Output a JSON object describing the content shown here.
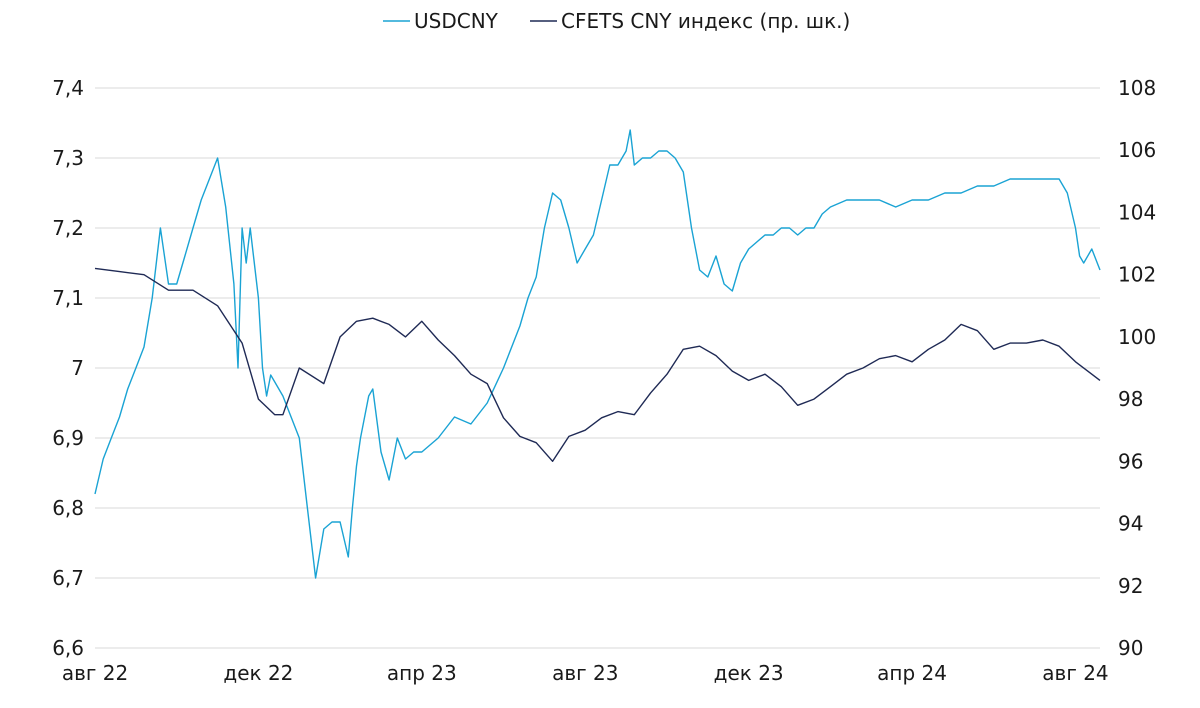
{
  "chart_data": {
    "type": "line",
    "title": "",
    "xlabel": "",
    "ylabel": "",
    "x_ticks": [
      "авг 22",
      "дек 22",
      "апр 23",
      "авг 23",
      "дек 23",
      "апр 24",
      "авг 24"
    ],
    "y_left": {
      "lim": [
        6.6,
        7.4
      ],
      "ticks": [
        "6,6",
        "6,7",
        "6,8",
        "6,9",
        "7",
        "7,1",
        "7,2",
        "7,3",
        "7,4"
      ]
    },
    "y_right": {
      "lim": [
        90,
        108
      ],
      "ticks": [
        "90",
        "92",
        "94",
        "96",
        "98",
        "100",
        "102",
        "104",
        "106",
        "108"
      ]
    },
    "grid": true,
    "legend_position": "top-center",
    "series": [
      {
        "name": "USDCNY",
        "axis": "left",
        "color": "#1aa3d4",
        "x": [
          0,
          0.1,
          0.2,
          0.3,
          0.4,
          0.5,
          0.6,
          0.7,
          0.8,
          0.9,
          1.0,
          1.1,
          1.2,
          1.3,
          1.4,
          1.5,
          1.6,
          1.7,
          1.75,
          1.8,
          1.85,
          1.9,
          2.0,
          2.05,
          2.1,
          2.15,
          2.2,
          2.3,
          2.4,
          2.5,
          2.6,
          2.7,
          2.8,
          2.9,
          3.0,
          3.1,
          3.15,
          3.2,
          3.25,
          3.3,
          3.35,
          3.4,
          3.5,
          3.6,
          3.7,
          3.8,
          3.9,
          4.0,
          4.2,
          4.4,
          4.6,
          4.8,
          5.0,
          5.2,
          5.3,
          5.4,
          5.5,
          5.6,
          5.7,
          5.8,
          5.9,
          6.0,
          6.1,
          6.2,
          6.3,
          6.4,
          6.5,
          6.55,
          6.6,
          6.7,
          6.8,
          6.9,
          7.0,
          7.1,
          7.2,
          7.3,
          7.4,
          7.5,
          7.6,
          7.7,
          7.8,
          7.9,
          8.0,
          8.1,
          8.2,
          8.3,
          8.4,
          8.5,
          8.6,
          8.7,
          8.8,
          8.9,
          9.0,
          9.2,
          9.4,
          9.6,
          9.8,
          10.0,
          10.2,
          10.4,
          10.6,
          10.8,
          11.0,
          11.2,
          11.4,
          11.6,
          11.8,
          11.9,
          12.0,
          12.05,
          12.1,
          12.2,
          12.3
        ],
        "values": [
          6.82,
          6.87,
          6.9,
          6.93,
          6.97,
          7.0,
          7.03,
          7.1,
          7.2,
          7.12,
          7.12,
          7.16,
          7.2,
          7.24,
          7.27,
          7.3,
          7.23,
          7.12,
          7.0,
          7.2,
          7.15,
          7.2,
          7.1,
          7.0,
          6.96,
          6.99,
          6.98,
          6.96,
          6.93,
          6.9,
          6.8,
          6.7,
          6.77,
          6.78,
          6.78,
          6.73,
          6.8,
          6.86,
          6.9,
          6.93,
          6.96,
          6.97,
          6.88,
          6.84,
          6.9,
          6.87,
          6.88,
          6.88,
          6.9,
          6.93,
          6.92,
          6.95,
          7.0,
          7.06,
          7.1,
          7.13,
          7.2,
          7.25,
          7.24,
          7.2,
          7.15,
          7.17,
          7.19,
          7.24,
          7.29,
          7.29,
          7.31,
          7.34,
          7.29,
          7.3,
          7.3,
          7.31,
          7.31,
          7.3,
          7.28,
          7.2,
          7.14,
          7.13,
          7.16,
          7.12,
          7.11,
          7.15,
          7.17,
          7.18,
          7.19,
          7.19,
          7.2,
          7.2,
          7.19,
          7.2,
          7.2,
          7.22,
          7.23,
          7.24,
          7.24,
          7.24,
          7.23,
          7.24,
          7.24,
          7.25,
          7.25,
          7.26,
          7.26,
          7.27,
          7.27,
          7.27,
          7.27,
          7.25,
          7.2,
          7.16,
          7.15,
          7.17,
          7.14
        ]
      },
      {
        "name": "CFETS CNY индекс (пр. шк.)",
        "axis": "right",
        "color": "#1f2a55",
        "x": [
          0,
          0.3,
          0.6,
          0.9,
          1.2,
          1.5,
          1.8,
          2.0,
          2.2,
          2.3,
          2.5,
          2.8,
          3.0,
          3.2,
          3.4,
          3.6,
          3.8,
          4.0,
          4.2,
          4.4,
          4.6,
          4.8,
          5.0,
          5.2,
          5.4,
          5.6,
          5.8,
          6.0,
          6.2,
          6.4,
          6.6,
          6.8,
          7.0,
          7.2,
          7.4,
          7.6,
          7.8,
          8.0,
          8.2,
          8.4,
          8.6,
          8.8,
          9.0,
          9.2,
          9.4,
          9.6,
          9.8,
          10.0,
          10.2,
          10.4,
          10.6,
          10.8,
          11.0,
          11.2,
          11.4,
          11.6,
          11.8,
          12.0,
          12.2,
          12.3
        ],
        "values": [
          102.2,
          102.1,
          102.0,
          101.5,
          101.5,
          101.0,
          99.8,
          98.0,
          97.5,
          97.5,
          99.0,
          98.5,
          100.0,
          100.5,
          100.6,
          100.4,
          100.0,
          100.5,
          99.9,
          99.4,
          98.8,
          98.5,
          97.4,
          96.8,
          96.6,
          96.0,
          96.8,
          97.0,
          97.4,
          97.6,
          97.5,
          98.2,
          98.8,
          99.6,
          99.7,
          99.4,
          98.9,
          98.6,
          98.8,
          98.4,
          97.8,
          98.0,
          98.4,
          98.8,
          99.0,
          99.3,
          99.4,
          99.2,
          99.6,
          99.9,
          100.4,
          100.2,
          99.6,
          99.8,
          99.8,
          99.9,
          99.7,
          99.2,
          98.8,
          98.6
        ]
      }
    ]
  }
}
